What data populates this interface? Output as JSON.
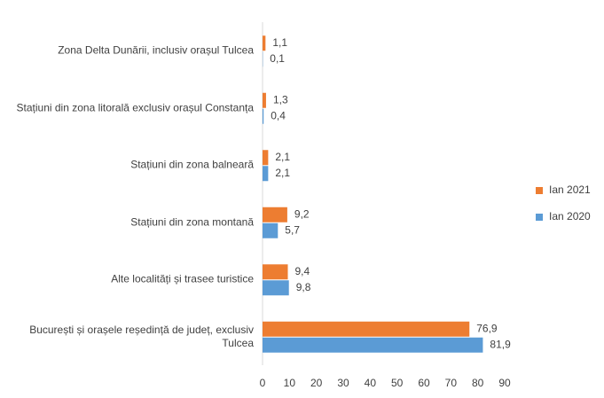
{
  "chart_data": {
    "type": "hbar",
    "categories": [
      "Zona Delta Dunării, inclusiv orașul Tulcea",
      "Stațiuni din zona litorală exclusiv orașul Constanța",
      "Stațiuni din zona balneară",
      "Stațiuni din zona montană",
      "Alte localități și trasee turistice",
      "București și orașele reședință de județ, exclusiv Tulcea"
    ],
    "series": [
      {
        "name": "Ian 2021",
        "color": "#ED7D31",
        "values": [
          1.1,
          1.3,
          2.1,
          9.2,
          9.4,
          76.9
        ],
        "value_labels": [
          "1,1",
          "1,3",
          "2,1",
          "9,2",
          "9,4",
          "76,9"
        ]
      },
      {
        "name": "Ian 2020",
        "color": "#5B9BD5",
        "values": [
          0.1,
          0.4,
          2.1,
          5.7,
          9.8,
          81.9
        ],
        "value_labels": [
          "0,1",
          "0,4",
          "2,1",
          "5,7",
          "9,8",
          "81,9"
        ]
      }
    ],
    "xlim": [
      0,
      90
    ],
    "xticks": [
      0,
      10,
      20,
      30,
      40,
      50,
      60,
      70,
      80,
      90
    ],
    "grid": false,
    "legend": "right"
  }
}
